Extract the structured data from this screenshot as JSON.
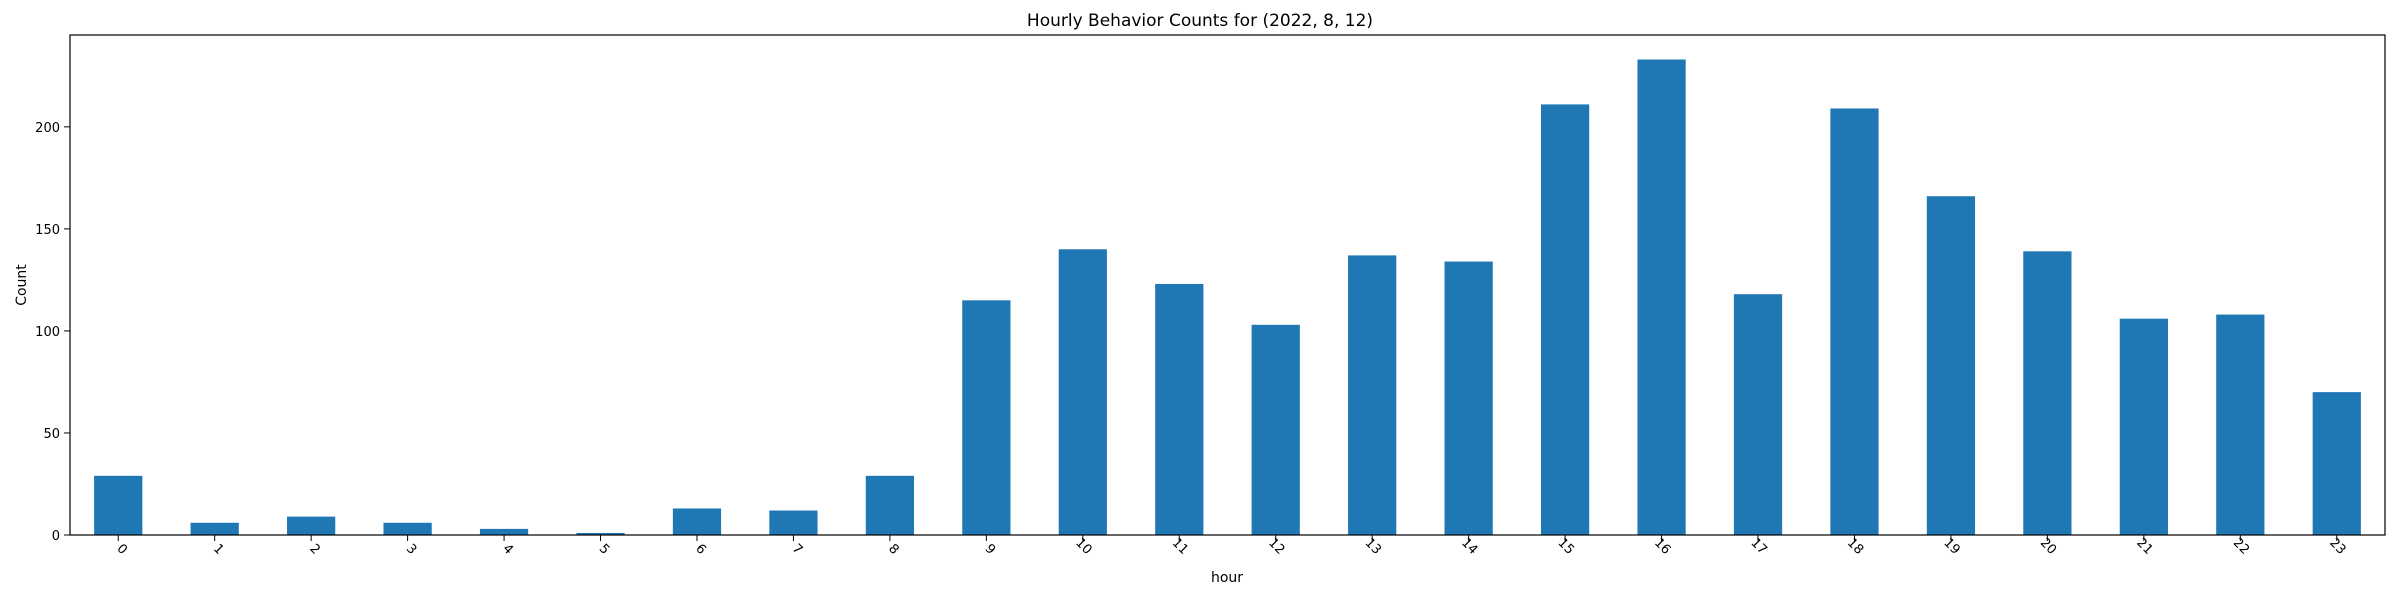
{
  "chart_data": {
    "type": "bar",
    "title": "Hourly Behavior Counts for (2022, 8, 12)",
    "xlabel": "hour",
    "ylabel": "Count",
    "categories": [
      "0",
      "1",
      "2",
      "3",
      "4",
      "5",
      "6",
      "7",
      "8",
      "9",
      "10",
      "11",
      "12",
      "13",
      "14",
      "15",
      "16",
      "17",
      "18",
      "19",
      "20",
      "21",
      "22",
      "23"
    ],
    "values": [
      29,
      6,
      9,
      6,
      3,
      1,
      13,
      12,
      29,
      115,
      140,
      123,
      103,
      137,
      134,
      211,
      233,
      118,
      209,
      166,
      139,
      106,
      108,
      70
    ],
    "ylim": [
      0,
      245
    ],
    "yticks": [
      0,
      50,
      100,
      150,
      200
    ],
    "xtick_rotation": 45,
    "grid": false,
    "bar_color": "#1f77b4"
  }
}
